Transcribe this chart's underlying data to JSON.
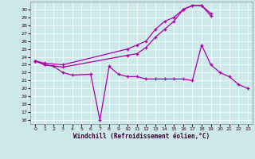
{
  "xlabel": "Windchill (Refroidissement éolien,°C)",
  "background_color": "#cce8e8",
  "grid_color": "#ffffff",
  "line_color": "#aa00aa",
  "xlim": [
    -0.5,
    23.5
  ],
  "ylim": [
    15.5,
    31.0
  ],
  "xticks": [
    0,
    1,
    2,
    3,
    4,
    5,
    6,
    7,
    8,
    9,
    10,
    11,
    12,
    13,
    14,
    15,
    16,
    17,
    18,
    19,
    20,
    21,
    22,
    23
  ],
  "yticks": [
    16,
    17,
    18,
    19,
    20,
    21,
    22,
    23,
    24,
    25,
    26,
    27,
    28,
    29,
    30
  ],
  "line1_x": [
    0,
    1,
    3,
    10,
    11,
    12,
    13,
    14,
    15,
    16,
    17,
    18,
    19
  ],
  "line1_y": [
    23.5,
    23.2,
    23.0,
    25.0,
    25.5,
    26.0,
    27.5,
    28.5,
    29.0,
    30.0,
    30.5,
    30.5,
    29.5
  ],
  "line2_x": [
    0,
    1,
    3,
    10,
    11,
    12,
    13,
    14,
    15,
    16,
    17,
    18,
    19
  ],
  "line2_y": [
    23.5,
    23.0,
    22.7,
    24.2,
    24.4,
    25.2,
    26.5,
    27.5,
    28.5,
    30.0,
    30.5,
    30.5,
    29.2
  ],
  "line3_x": [
    0,
    1,
    2,
    3,
    4,
    6,
    7,
    8,
    9,
    10,
    11,
    12,
    13,
    14,
    15,
    16,
    17,
    18,
    19,
    20,
    21,
    22,
    23
  ],
  "line3_y": [
    23.5,
    23.0,
    22.8,
    22.0,
    21.7,
    21.8,
    16.0,
    22.8,
    21.8,
    21.5,
    21.5,
    21.2,
    21.2,
    21.2,
    21.2,
    21.2,
    21.0,
    25.5,
    23.0,
    22.0,
    21.5,
    20.5,
    20.0
  ]
}
